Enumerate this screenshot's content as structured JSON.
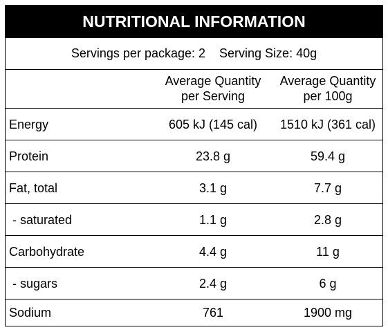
{
  "title": "NUTRITIONAL INFORMATION",
  "servings": {
    "per_package": "Servings per package: 2",
    "serving_size": "Serving Size: 40g"
  },
  "columns": {
    "serving": [
      "Average Quantity",
      "per Serving"
    ],
    "per100": [
      "Average Quantity",
      "per 100g"
    ]
  },
  "rows": [
    {
      "label": "Energy",
      "per_serving": "605 kJ (145 cal)",
      "per_100g": "1510 kJ (361 cal)"
    },
    {
      "label": "Protein",
      "per_serving": "23.8 g",
      "per_100g": "59.4 g"
    },
    {
      "label": "Fat, total",
      "per_serving": "3.1 g",
      "per_100g": "7.7 g"
    },
    {
      "label": " - saturated",
      "per_serving": "1.1 g",
      "per_100g": "2.8 g"
    },
    {
      "label": "Carbohydrate",
      "per_serving": "4.4 g",
      "per_100g": "11 g"
    },
    {
      "label": " - sugars",
      "per_serving": "2.4 g",
      "per_100g": "6 g"
    },
    {
      "label": "Sodium",
      "per_serving": "761",
      "per_100g": "1900 mg"
    }
  ]
}
